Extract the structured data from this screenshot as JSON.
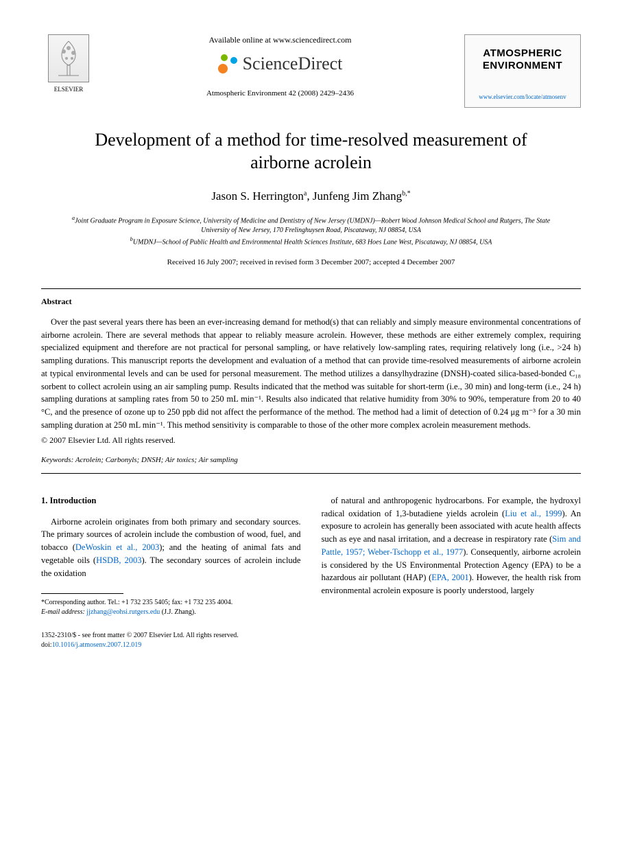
{
  "header": {
    "elsevier_label": "ELSEVIER",
    "available_text": "Available online at www.sciencedirect.com",
    "sciencedirect_text": "ScienceDirect",
    "journal_citation": "Atmospheric Environment 42 (2008) 2429–2436",
    "journal_box_name": "ATMOSPHERIC ENVIRONMENT",
    "journal_link": "www.elsevier.com/locate/atmosenv"
  },
  "article": {
    "title": "Development of a method for time-resolved measurement of airborne acrolein",
    "authors_html": "Jason S. Herrington<sup>a</sup>, Junfeng Jim Zhang<sup>b,*</sup>",
    "affiliation_a": "aJoint Graduate Program in Exposure Science, University of Medicine and Dentistry of New Jersey (UMDNJ)—Robert Wood Johnson Medical School and Rutgers, The State University of New Jersey, 170 Frelinghuysen Road, Piscataway, NJ 08854, USA",
    "affiliation_b": "bUMDNJ—School of Public Health and Environmental Health Sciences Institute, 683 Hoes Lane West, Piscataway, NJ 08854, USA",
    "dates": "Received 16 July 2007; received in revised form 3 December 2007; accepted 4 December 2007"
  },
  "abstract": {
    "label": "Abstract",
    "text": "Over the past several years there has been an ever-increasing demand for method(s) that can reliably and simply measure environmental concentrations of airborne acrolein. There are several methods that appear to reliably measure acrolein. However, these methods are either extremely complex, requiring specialized equipment and therefore are not practical for personal sampling, or have relatively low-sampling rates, requiring relatively long (i.e., >24 h) sampling durations. This manuscript reports the development and evaluation of a method that can provide time-resolved measurements of airborne acrolein at typical environmental levels and can be used for personal measurement. The method utilizes a dansylhydrazine (DNSH)-coated silica-based-bonded C₁₈ sorbent to collect acrolein using an air sampling pump. Results indicated that the method was suitable for short-term (i.e., 30 min) and long-term (i.e., 24 h) sampling durations at sampling rates from 50 to 250 mL min⁻¹. Results also indicated that relative humidity from 30% to 90%, temperature from 20 to 40 °C, and the presence of ozone up to 250 ppb did not affect the performance of the method. The method had a limit of detection of 0.24 μg m⁻³ for a 30 min sampling duration at 250 mL min⁻¹. This method sensitivity is comparable to those of the other more complex acrolein measurement methods.",
    "copyright": "© 2007 Elsevier Ltd. All rights reserved.",
    "keywords_label": "Keywords:",
    "keywords_text": "Acrolein; Carbonyls; DNSH; Air toxics; Air sampling"
  },
  "body": {
    "section_heading": "1. Introduction",
    "left_col": "Airborne acrolein originates from both primary and secondary sources. The primary sources of acrolein include the combustion of wood, fuel, and tobacco (DeWoskin et al., 2003); and the heating of animal fats and vegetable oils (HSDB, 2003). The secondary sources of acrolein include the oxidation",
    "right_col": "of natural and anthropogenic hydrocarbons. For example, the hydroxyl radical oxidation of 1,3-butadiene yields acrolein (Liu et al., 1999). An exposure to acrolein has generally been associated with acute health affects such as eye and nasal irritation, and a decrease in respiratory rate (Sim and Pattle, 1957; Weber-Tschopp et al., 1977). Consequently, airborne acrolein is considered by the US Environmental Protection Agency (EPA) to be a hazardous air pollutant (HAP) (EPA, 2001). However, the health risk from environmental acrolein exposure is poorly understood, largely"
  },
  "footnotes": {
    "corresponding": "*Corresponding author. Tel.: +1 732 235 5405; fax: +1 732 235 4004.",
    "email_label": "E-mail address:",
    "email": "jjzhang@eohsi.rutgers.edu",
    "email_suffix": "(J.J. Zhang)."
  },
  "footer": {
    "front_matter": "1352-2310/$ - see front matter © 2007 Elsevier Ltd. All rights reserved.",
    "doi_label": "doi:",
    "doi": "10.1016/j.atmosenv.2007.12.019"
  },
  "colors": {
    "link": "#0066cc",
    "text": "#000000",
    "sd_orange": "#f58220",
    "sd_green": "#7ab800",
    "sd_blue": "#00a4e4"
  }
}
